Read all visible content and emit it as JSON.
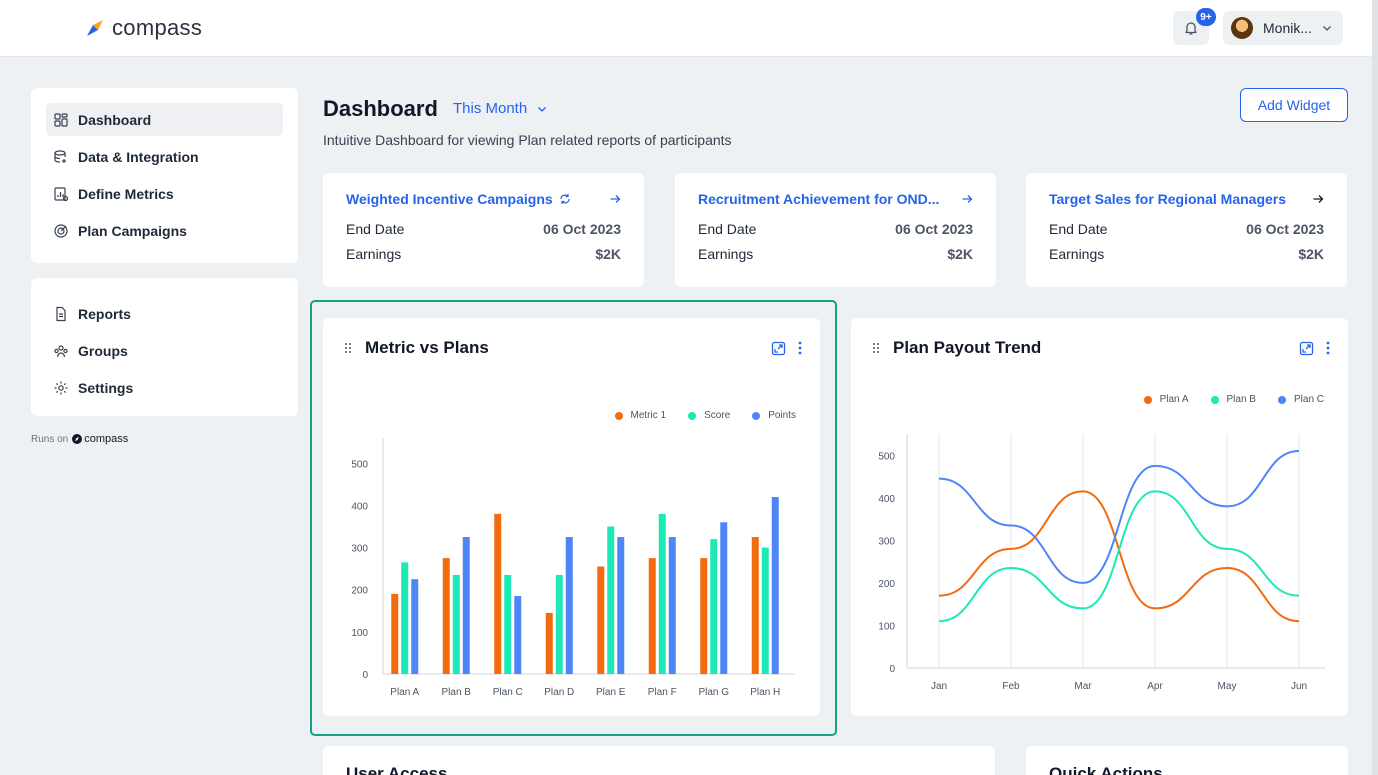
{
  "brand": {
    "name": "compass"
  },
  "header": {
    "notifications_badge": "9+",
    "user_name": "Monik..."
  },
  "sidebar": {
    "primary": [
      {
        "label": "Dashboard",
        "icon": "dashboard-icon",
        "active": true
      },
      {
        "label": "Data & Integration",
        "icon": "data-icon"
      },
      {
        "label": "Define Metrics",
        "icon": "metrics-icon"
      },
      {
        "label": "Plan Campaigns",
        "icon": "target-icon"
      }
    ],
    "secondary": [
      {
        "label": "Reports",
        "icon": "report-icon"
      },
      {
        "label": "Groups",
        "icon": "groups-icon"
      },
      {
        "label": "Settings",
        "icon": "gear-icon"
      }
    ],
    "runs_on": "Runs on",
    "runs_on_brand": "compass"
  },
  "page": {
    "title": "Dashboard",
    "period": "This Month",
    "subtitle": "Intuitive Dashboard for viewing Plan related reports of participants",
    "add_widget": "Add Widget"
  },
  "campaigns": [
    {
      "title": "Weighted Incentive Campaigns",
      "end_date_label": "End Date",
      "end_date": "06 Oct 2023",
      "earnings_label": "Earnings",
      "earnings": "$2K"
    },
    {
      "title": "Recruitment Achievement for OND...",
      "end_date_label": "End Date",
      "end_date": "06 Oct 2023",
      "earnings_label": "Earnings",
      "earnings": "$2K"
    },
    {
      "title": "Target Sales for Regional Managers",
      "end_date_label": "End Date",
      "end_date": "06 Oct 2023",
      "earnings_label": "Earnings",
      "earnings": "$2K"
    }
  ],
  "widgets": {
    "metric_vs_plans": {
      "title": "Metric vs Plans"
    },
    "plan_payout_trend": {
      "title": "Plan Payout Trend"
    },
    "user_access": {
      "title": "User Access"
    },
    "quick_actions": {
      "title": "Quick Actions"
    }
  },
  "colors": {
    "orange": "#f26b0f",
    "teal": "#1de9b6",
    "blue": "#4f86f7",
    "accent": "#2563eb",
    "highlight": "#16a085"
  },
  "chart_data": [
    {
      "type": "bar",
      "title": "Metric vs Plans",
      "categories": [
        "Plan A",
        "Plan B",
        "Plan C",
        "Plan D",
        "Plan E",
        "Plan F",
        "Plan G",
        "Plan H"
      ],
      "series": [
        {
          "name": "Metric 1",
          "values": [
            190,
            275,
            380,
            145,
            255,
            275,
            275,
            325
          ]
        },
        {
          "name": "Score",
          "values": [
            265,
            235,
            235,
            235,
            350,
            380,
            320,
            300
          ]
        },
        {
          "name": "Points",
          "values": [
            225,
            325,
            185,
            325,
            325,
            325,
            360,
            420
          ]
        }
      ],
      "yticks": [
        0,
        100,
        200,
        300,
        400,
        500
      ],
      "ylim": [
        0,
        560
      ],
      "legend": "top-right",
      "grid": false
    },
    {
      "type": "line",
      "title": "Plan Payout Trend",
      "categories": [
        "Jan",
        "Feb",
        "Mar",
        "Apr",
        "May",
        "Jun"
      ],
      "series": [
        {
          "name": "Plan A",
          "values": [
            170,
            280,
            415,
            140,
            235,
            110
          ]
        },
        {
          "name": "Plan B",
          "values": [
            110,
            235,
            140,
            415,
            280,
            170
          ]
        },
        {
          "name": "Plan C",
          "values": [
            445,
            335,
            200,
            475,
            380,
            510
          ]
        }
      ],
      "yticks": [
        0,
        100,
        200,
        300,
        400,
        500
      ],
      "ylim": [
        0,
        550
      ],
      "legend": "top-right",
      "grid": true
    }
  ]
}
